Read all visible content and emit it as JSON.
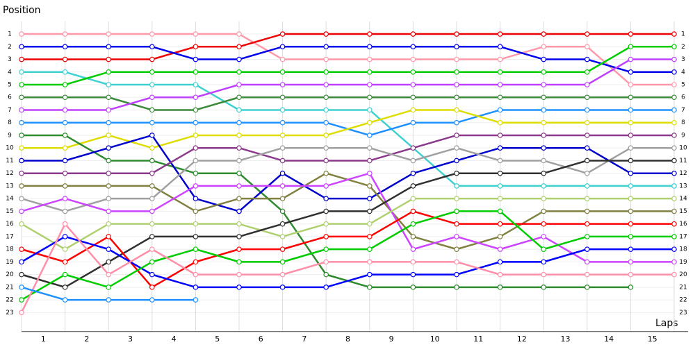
{
  "chart_data": {
    "type": "line",
    "y_label": "Position",
    "x_label": "Laps",
    "x": [
      0,
      1,
      2,
      3,
      4,
      5,
      6,
      7,
      8,
      9,
      10,
      11,
      12,
      13,
      14,
      15
    ],
    "xlim": [
      0,
      15
    ],
    "xticks": [
      {
        "value": 0.5,
        "label": "1"
      },
      {
        "value": 1.5,
        "label": "2"
      },
      {
        "value": 2.5,
        "label": "3"
      },
      {
        "value": 3.5,
        "label": "4"
      },
      {
        "value": 4.5,
        "label": "5"
      },
      {
        "value": 5.5,
        "label": "6"
      },
      {
        "value": 6.5,
        "label": "7"
      },
      {
        "value": 7.5,
        "label": "8"
      },
      {
        "value": 8.5,
        "label": "9"
      },
      {
        "value": 9.5,
        "label": "10"
      },
      {
        "value": 10.5,
        "label": "11"
      },
      {
        "value": 11.5,
        "label": "12"
      },
      {
        "value": 12.5,
        "label": "13"
      },
      {
        "value": 13.5,
        "label": "14"
      },
      {
        "value": 14.5,
        "label": "15"
      }
    ],
    "ylim": [
      24.5,
      0
    ],
    "yticks": [
      1,
      2,
      3,
      4,
      5,
      6,
      7,
      8,
      9,
      10,
      11,
      12,
      13,
      14,
      15,
      16,
      17,
      18,
      19,
      20,
      21,
      22,
      23
    ],
    "grid": true,
    "series": [
      {
        "color": "#ff99aa",
        "values": [
          1,
          1,
          1,
          1,
          1,
          1,
          3,
          3,
          3,
          3,
          3,
          3,
          2,
          2,
          5,
          5
        ]
      },
      {
        "color": "#ee0000",
        "values": [
          3,
          3,
          3,
          3,
          2,
          2,
          1,
          1,
          1,
          1,
          1,
          1,
          1,
          1,
          1,
          1
        ]
      },
      {
        "color": "#0000ee",
        "values": [
          2,
          2,
          2,
          2,
          3,
          3,
          2,
          2,
          2,
          2,
          2,
          2,
          3,
          3,
          4,
          4
        ]
      },
      {
        "color": "#40d0d0",
        "values": [
          4,
          4,
          5,
          5,
          5,
          7,
          7,
          7,
          7,
          10,
          13,
          13,
          13,
          13,
          13,
          13
        ]
      },
      {
        "color": "#00cc00",
        "values": [
          5,
          5,
          4,
          4,
          4,
          4,
          4,
          4,
          4,
          4,
          4,
          4,
          4,
          4,
          2,
          2
        ]
      },
      {
        "color": "#3a8a3a",
        "values": [
          6,
          6,
          6,
          7,
          7,
          6,
          6,
          6,
          6,
          6,
          6,
          6,
          6,
          6,
          6,
          6
        ]
      },
      {
        "color": "#c040ff",
        "values": [
          7,
          7,
          7,
          6,
          6,
          5,
          5,
          5,
          5,
          5,
          5,
          5,
          5,
          5,
          3,
          3
        ]
      },
      {
        "color": "#1e90ff",
        "values": [
          8,
          8,
          8,
          8,
          8,
          8,
          8,
          8,
          9,
          8,
          8,
          7,
          7,
          7,
          7,
          7
        ]
      },
      {
        "color": "#dddd00",
        "values": [
          10,
          10,
          9,
          10,
          9,
          9,
          9,
          9,
          8,
          7,
          7,
          8,
          8,
          8,
          8,
          8
        ]
      },
      {
        "color": "#2e8b2e",
        "values": [
          9,
          9,
          11,
          11,
          12,
          12,
          15,
          20,
          21,
          21,
          21,
          21,
          21,
          21,
          21,
          null
        ]
      },
      {
        "color": "#0000cc",
        "values": [
          11,
          11,
          10,
          9,
          14,
          15,
          12,
          14,
          14,
          12,
          11,
          10,
          10,
          10,
          12,
          12
        ]
      },
      {
        "color": "#8b3a8b",
        "values": [
          12,
          12,
          12,
          12,
          10,
          10,
          11,
          11,
          11,
          10,
          9,
          9,
          9,
          9,
          9,
          9
        ]
      },
      {
        "color": "#808040",
        "values": [
          13,
          13,
          13,
          13,
          15,
          14,
          14,
          12,
          13,
          17,
          18,
          17,
          15,
          15,
          15,
          15
        ]
      },
      {
        "color": "#a0a0a0",
        "values": [
          14,
          15,
          14,
          14,
          11,
          11,
          10,
          10,
          10,
          11,
          10,
          11,
          11,
          12,
          10,
          10
        ]
      },
      {
        "color": "#cc44ff",
        "values": [
          15,
          14,
          15,
          15,
          13,
          13,
          13,
          13,
          12,
          18,
          17,
          18,
          17,
          19,
          19,
          19
        ]
      },
      {
        "color": "#b0d070",
        "values": [
          16,
          18,
          16,
          16,
          16,
          16,
          17,
          16,
          16,
          14,
          14,
          14,
          14,
          14,
          14,
          14
        ]
      },
      {
        "color": "#303030",
        "values": [
          20,
          21,
          19,
          17,
          17,
          17,
          16,
          15,
          15,
          13,
          12,
          12,
          12,
          11,
          11,
          11
        ]
      },
      {
        "color": "#ff0000",
        "values": [
          18,
          19,
          17,
          21,
          19,
          18,
          18,
          17,
          17,
          15,
          16,
          16,
          16,
          16,
          16,
          16
        ]
      },
      {
        "color": "#0000ff",
        "values": [
          19,
          17,
          18,
          20,
          21,
          21,
          21,
          21,
          20,
          20,
          20,
          19,
          19,
          18,
          18,
          18
        ]
      },
      {
        "color": "#00cc00",
        "values": [
          22,
          20,
          21,
          19,
          18,
          19,
          19,
          18,
          18,
          16,
          15,
          15,
          18,
          17,
          17,
          17
        ]
      },
      {
        "color": "#ff8fa8",
        "values": [
          23,
          16,
          20,
          18,
          20,
          20,
          20,
          19,
          19,
          19,
          19,
          20,
          20,
          20,
          20,
          20
        ]
      },
      {
        "color": "#1e90ff",
        "values": [
          21,
          22,
          22,
          22,
          22,
          null,
          null,
          null,
          null,
          null,
          null,
          null,
          null,
          null,
          null,
          null
        ]
      }
    ]
  }
}
